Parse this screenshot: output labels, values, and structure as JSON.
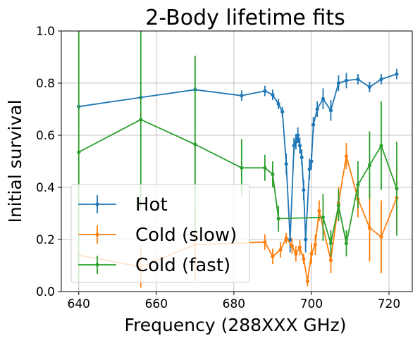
{
  "chart_data": {
    "type": "line",
    "title": "2-Body lifetime fits",
    "xlabel": "Frequency (288XXX GHz)",
    "ylabel": "Initial survival",
    "xlim": [
      635.5,
      726
    ],
    "ylim": [
      0,
      1
    ],
    "xticks": [
      640,
      660,
      680,
      700,
      720
    ],
    "yticks": [
      0.0,
      0.2,
      0.4,
      0.6,
      0.8,
      1.0
    ],
    "grid": true,
    "legend_position": "lower-left",
    "series": [
      {
        "name": "Hot",
        "color": "#1f77b4",
        "x": [
          640,
          656,
          670,
          682,
          688,
          690,
          691.5,
          692.5,
          693.5,
          694.5,
          695.5,
          696,
          696.5,
          697,
          697.5,
          698,
          698.5,
          699.5,
          700,
          700.5,
          701.5,
          703,
          705,
          707,
          709,
          712,
          715,
          718,
          722
        ],
        "y": [
          0.71,
          0.745,
          0.775,
          0.752,
          0.77,
          0.755,
          0.72,
          0.69,
          0.49,
          0.2,
          0.56,
          0.575,
          0.6,
          0.56,
          0.515,
          0.39,
          0.2,
          0.47,
          0.5,
          0.64,
          0.7,
          0.74,
          0.695,
          0.8,
          0.81,
          0.815,
          0.785,
          0.815,
          0.835
        ],
        "err": [
          0.01,
          0.01,
          0.01,
          0.02,
          0.02,
          0.02,
          0.02,
          0.02,
          0.04,
          0.05,
          0.03,
          0.03,
          0.03,
          0.03,
          0.03,
          0.04,
          0.05,
          0.04,
          0.03,
          0.03,
          0.03,
          0.04,
          0.04,
          0.03,
          0.03,
          0.02,
          0.02,
          0.02,
          0.02
        ]
      },
      {
        "name": "Cold (slow)",
        "color": "#ff7f0e",
        "x": [
          640,
          656,
          670,
          688,
          690,
          692,
          693.5,
          695,
          696,
          697,
          698,
          699,
          700,
          701,
          702,
          705,
          707,
          709,
          712,
          715,
          718,
          722
        ],
        "y": [
          0.14,
          0.095,
          0.18,
          0.19,
          0.135,
          0.16,
          0.205,
          0.175,
          0.145,
          0.17,
          0.125,
          0.04,
          0.145,
          0.18,
          0.31,
          0.12,
          0.34,
          0.52,
          0.355,
          0.245,
          0.21,
          0.36
        ],
        "err": [
          0.08,
          0.08,
          0.14,
          0.03,
          0.03,
          0.03,
          0.02,
          0.03,
          0.03,
          0.03,
          0.02,
          0.02,
          0.04,
          0.04,
          0.04,
          0.05,
          0.06,
          0.05,
          0.07,
          0.13,
          0.14,
          0.13
        ]
      },
      {
        "name": "Cold (fast)",
        "color": "#2ca02c",
        "x": [
          640,
          656,
          670,
          682,
          688,
          690,
          691.5,
          703,
          705,
          707,
          709,
          712,
          715,
          718,
          722
        ],
        "y": [
          0.535,
          0.66,
          0.565,
          0.475,
          0.475,
          0.45,
          0.28,
          0.285,
          0.185,
          0.33,
          0.185,
          0.41,
          0.485,
          0.56,
          0.395
        ],
        "err": [
          0.5,
          0.34,
          0.34,
          0.11,
          0.05,
          0.05,
          0.05,
          0.09,
          0.05,
          0.06,
          0.05,
          0.09,
          0.13,
          0.17,
          0.18
        ]
      }
    ]
  }
}
